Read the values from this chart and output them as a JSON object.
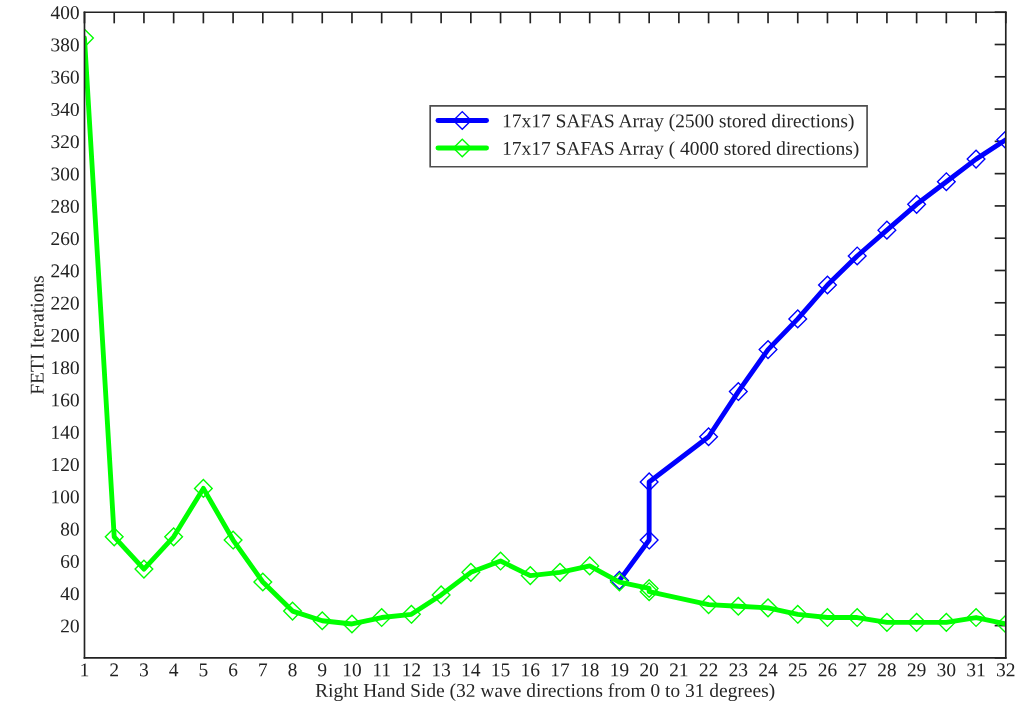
{
  "chart_data": {
    "type": "line",
    "xlabel": "Right Hand Side (32 wave directions from 0 to 31 degrees)",
    "ylabel": "FETI Iterations",
    "xlim": [
      1,
      32
    ],
    "xticks": [
      1,
      2,
      3,
      4,
      5,
      6,
      7,
      8,
      9,
      10,
      11,
      12,
      13,
      14,
      15,
      16,
      17,
      18,
      19,
      20,
      21,
      22,
      23,
      24,
      25,
      26,
      27,
      28,
      29,
      30,
      31,
      32
    ],
    "ylim": [
      0,
      400
    ],
    "yticks": [
      {
        "value": 0,
        "label": null
      },
      20,
      40,
      60,
      80,
      100,
      120,
      140,
      160,
      180,
      200,
      220,
      240,
      260,
      280,
      300,
      320,
      340,
      360,
      380,
      400
    ],
    "marker": "diamond",
    "line_style": "solid",
    "legend": "top right",
    "grid": false,
    "series": [
      {
        "name": "17x17 SAFAS Array (2500 stored directions)",
        "color": "#0000ff",
        "x": [
          19,
          20,
          20,
          22,
          23,
          24,
          25,
          26,
          27,
          28,
          29,
          30,
          31,
          32
        ],
        "values": [
          48,
          73,
          109,
          137,
          165,
          191,
          210,
          231,
          249,
          265,
          281,
          295,
          309,
          321
        ]
      },
      {
        "name": "17x17 SAFAS Array ( 4000 stored directions)",
        "color": "#00ff00",
        "x": [
          1,
          2,
          3,
          4,
          5,
          6,
          7,
          8,
          9,
          10,
          11,
          12,
          13,
          14,
          15,
          16,
          17,
          18,
          19,
          20,
          20,
          22,
          23,
          24,
          25,
          26,
          27,
          28,
          29,
          30,
          31,
          32
        ],
        "values": [
          384,
          75,
          55,
          75,
          105,
          73,
          47,
          29,
          23,
          21,
          25,
          27,
          39,
          53,
          60,
          51,
          53,
          57,
          47,
          43,
          41,
          33,
          32,
          31,
          27,
          25,
          25,
          22,
          22,
          22,
          25,
          21
        ]
      }
    ]
  }
}
